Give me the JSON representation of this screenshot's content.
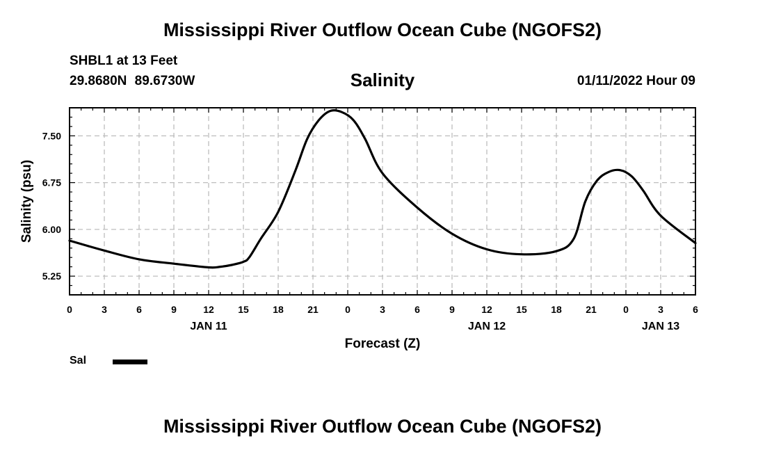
{
  "header": {
    "title": "Mississippi River Outflow Ocean Cube (NGOFS2)",
    "station": "SHBL1 at 13 Feet",
    "coords": "29.8680N  89.6730W",
    "subtitle": "Salinity",
    "datetime": "01/11/2022 Hour 09"
  },
  "footer": {
    "title": "Mississippi River Outflow Ocean Cube (NGOFS2)"
  },
  "chart_data": {
    "type": "line",
    "title": "Salinity",
    "xlabel": "Forecast (Z)",
    "ylabel": "Salinity (psu)",
    "xlim": [
      0,
      54
    ],
    "ylim": [
      4.95,
      7.95
    ],
    "yticks": [
      5.25,
      6.0,
      6.75,
      7.5
    ],
    "ytick_labels": [
      "5.25",
      "6.00",
      "6.75",
      "7.50"
    ],
    "xticks": [
      0,
      3,
      6,
      9,
      12,
      15,
      18,
      21,
      24,
      27,
      30,
      33,
      36,
      39,
      42,
      45,
      48,
      51,
      54
    ],
    "xtick_labels": [
      "0",
      "3",
      "6",
      "9",
      "12",
      "15",
      "18",
      "21",
      "0",
      "3",
      "6",
      "9",
      "12",
      "15",
      "18",
      "21",
      "0",
      "3",
      "6"
    ],
    "date_labels": [
      {
        "x": 12,
        "label": "JAN 11"
      },
      {
        "x": 36,
        "label": "JAN 12"
      },
      {
        "x": 51,
        "label": "JAN 13"
      }
    ],
    "grid": true,
    "legend": "bottom-left",
    "series": [
      {
        "name": "Sal",
        "x": [
          0,
          3,
          6,
          9,
          12,
          13,
          14,
          15,
          15.5,
          16.5,
          18,
          19.5,
          20.5,
          21.5,
          22.5,
          23.5,
          24.5,
          25.5,
          27,
          30,
          33,
          36,
          39,
          42,
          43.5,
          44.5,
          45.5,
          46.5,
          47.5,
          48.5,
          49.5,
          51,
          54
        ],
        "y": [
          5.82,
          5.66,
          5.52,
          5.45,
          5.39,
          5.4,
          5.43,
          5.48,
          5.55,
          5.85,
          6.28,
          6.95,
          7.45,
          7.75,
          7.9,
          7.88,
          7.75,
          7.45,
          6.9,
          6.35,
          5.93,
          5.68,
          5.6,
          5.65,
          5.85,
          6.45,
          6.78,
          6.92,
          6.95,
          6.85,
          6.62,
          6.22,
          5.78
        ]
      }
    ]
  },
  "legend": {
    "label": "Sal"
  }
}
